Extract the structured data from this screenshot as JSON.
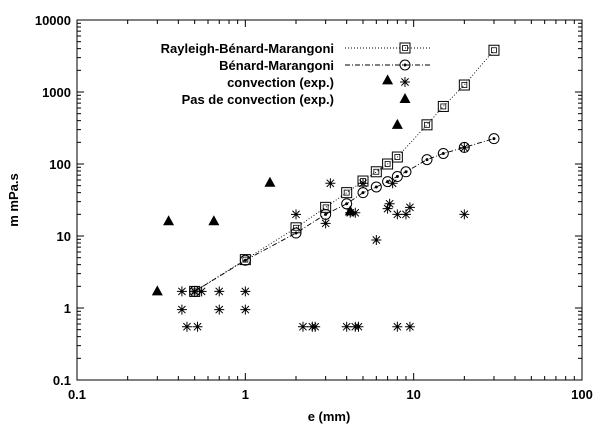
{
  "chart_data": {
    "type": "scatter",
    "title": "",
    "xlabel": "e (mm)",
    "ylabel": "m mPa.s",
    "xscale": "log",
    "yscale": "log",
    "xlim": [
      0.1,
      100
    ],
    "ylim": [
      0.1,
      10000
    ],
    "x_ticks": [
      "0.1",
      "1",
      "10",
      "100"
    ],
    "y_ticks": [
      "0.1",
      "1",
      "10",
      "100",
      "1000",
      "10000"
    ],
    "grid": false,
    "legend_position": "top-left",
    "series": [
      {
        "name": "Rayleigh-Bénard-Marangoni",
        "marker": "square",
        "line": "dotted",
        "color": "#000000",
        "points": [
          [
            0.5,
            1.7
          ],
          [
            1,
            4.7
          ],
          [
            2,
            13
          ],
          [
            3,
            25
          ],
          [
            4,
            40
          ],
          [
            5,
            58
          ],
          [
            6,
            78
          ],
          [
            7,
            100
          ],
          [
            8,
            125
          ],
          [
            12,
            350
          ],
          [
            15,
            630
          ],
          [
            20,
            1250
          ],
          [
            30,
            3800
          ]
        ]
      },
      {
        "name": "Bénard-Marangoni",
        "marker": "circle",
        "line": "dash-dot",
        "color": "#000000",
        "points": [
          [
            0.5,
            1.7
          ],
          [
            1,
            4.6
          ],
          [
            2,
            11
          ],
          [
            3,
            20
          ],
          [
            4,
            28
          ],
          [
            5,
            40
          ],
          [
            6,
            48
          ],
          [
            7,
            57
          ],
          [
            8,
            67
          ],
          [
            9,
            78
          ],
          [
            12,
            115
          ],
          [
            15,
            140
          ],
          [
            20,
            170
          ],
          [
            30,
            225
          ]
        ]
      },
      {
        "name": "convection (exp.)",
        "marker": "star",
        "line": "none",
        "color": "#000000",
        "points": [
          [
            0.42,
            1.7
          ],
          [
            0.5,
            1.7
          ],
          [
            0.55,
            1.7
          ],
          [
            0.7,
            1.7
          ],
          [
            1,
            1.7
          ],
          [
            0.42,
            0.95
          ],
          [
            0.7,
            0.95
          ],
          [
            1,
            0.95
          ],
          [
            0.45,
            0.55
          ],
          [
            0.52,
            0.55
          ],
          [
            2.2,
            0.55
          ],
          [
            2.5,
            0.55
          ],
          [
            2.6,
            0.55
          ],
          [
            4,
            0.55
          ],
          [
            4.5,
            0.55
          ],
          [
            4.7,
            0.55
          ],
          [
            8,
            0.55
          ],
          [
            9.5,
            0.55
          ],
          [
            2,
            20
          ],
          [
            3,
            15
          ],
          [
            3.2,
            54
          ],
          [
            4.2,
            21
          ],
          [
            4.5,
            21
          ],
          [
            5,
            54
          ],
          [
            6,
            8.8
          ],
          [
            7,
            24
          ],
          [
            7.2,
            28
          ],
          [
            7.5,
            54
          ],
          [
            8,
            20
          ],
          [
            9,
            20
          ],
          [
            9.5,
            25
          ],
          [
            20,
            20
          ],
          [
            20,
            168
          ]
        ]
      },
      {
        "name": "Pas de convection (exp.)",
        "marker": "triangle",
        "line": "none",
        "color": "#000000",
        "points": [
          [
            0.3,
            1.7
          ],
          [
            0.35,
            16
          ],
          [
            0.65,
            16
          ],
          [
            1.4,
            55
          ],
          [
            4.2,
            22
          ],
          [
            7,
            1450
          ],
          [
            8,
            350
          ]
        ]
      }
    ]
  }
}
